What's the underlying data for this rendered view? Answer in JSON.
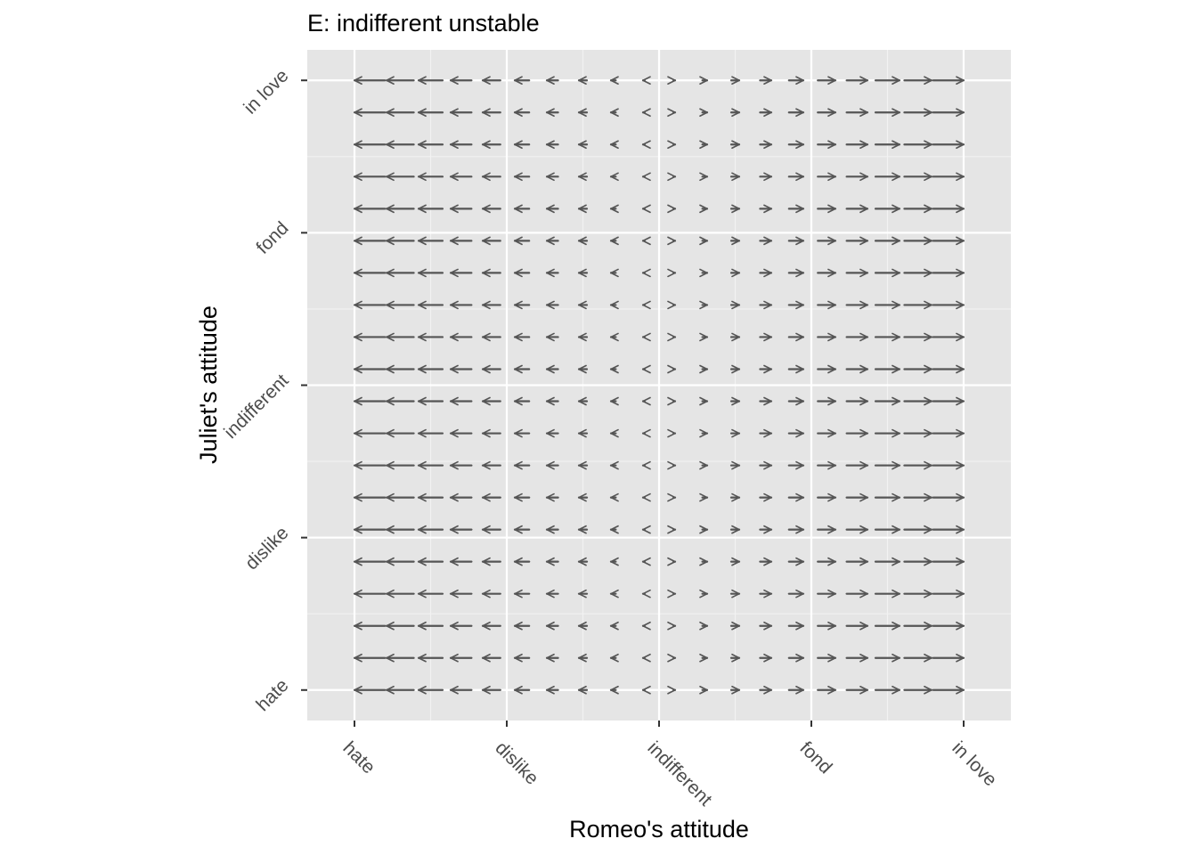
{
  "chart_data": {
    "type": "vector-field",
    "title": "E: indifferent unstable",
    "xlabel": "Romeo's attitude",
    "ylabel": "Juliet's attitude",
    "x_tick_labels": [
      "hate",
      "dislike",
      "indifferent",
      "fond",
      "in love"
    ],
    "y_tick_labels": [
      "hate",
      "dislike",
      "indifferent",
      "fond",
      "in love"
    ],
    "x_tick_values": [
      -1,
      -0.5,
      0,
      0.5,
      1
    ],
    "y_tick_values": [
      -1,
      -0.5,
      0,
      0.5,
      1
    ],
    "xlim": [
      -1.155,
      1.155
    ],
    "ylim": [
      -1.1,
      1.1
    ],
    "grid": true,
    "field": {
      "description_equation": "dx = x, dy = 0",
      "x_values": [
        -0.95,
        -0.85,
        -0.75,
        -0.65,
        -0.55,
        -0.45,
        -0.35,
        -0.25,
        -0.15,
        -0.05,
        0.05,
        0.15,
        0.25,
        0.35,
        0.45,
        0.55,
        0.65,
        0.75,
        0.85,
        0.95
      ],
      "y_values": [
        -1.0,
        -0.8947,
        -0.7895,
        -0.6842,
        -0.5789,
        -0.4737,
        -0.3684,
        -0.2632,
        -0.1579,
        -0.0526,
        0.0526,
        0.1579,
        0.2632,
        0.3684,
        0.4737,
        0.5789,
        0.6842,
        0.7895,
        0.8947,
        1.0
      ],
      "dx_scale": 0.105,
      "dy": 0
    },
    "colors": {
      "panel": "#e5e5e5",
      "grid_major": "#ffffff",
      "grid_minor": "#f2f2f2",
      "arrow": "#555555",
      "tick": "#333333"
    }
  }
}
